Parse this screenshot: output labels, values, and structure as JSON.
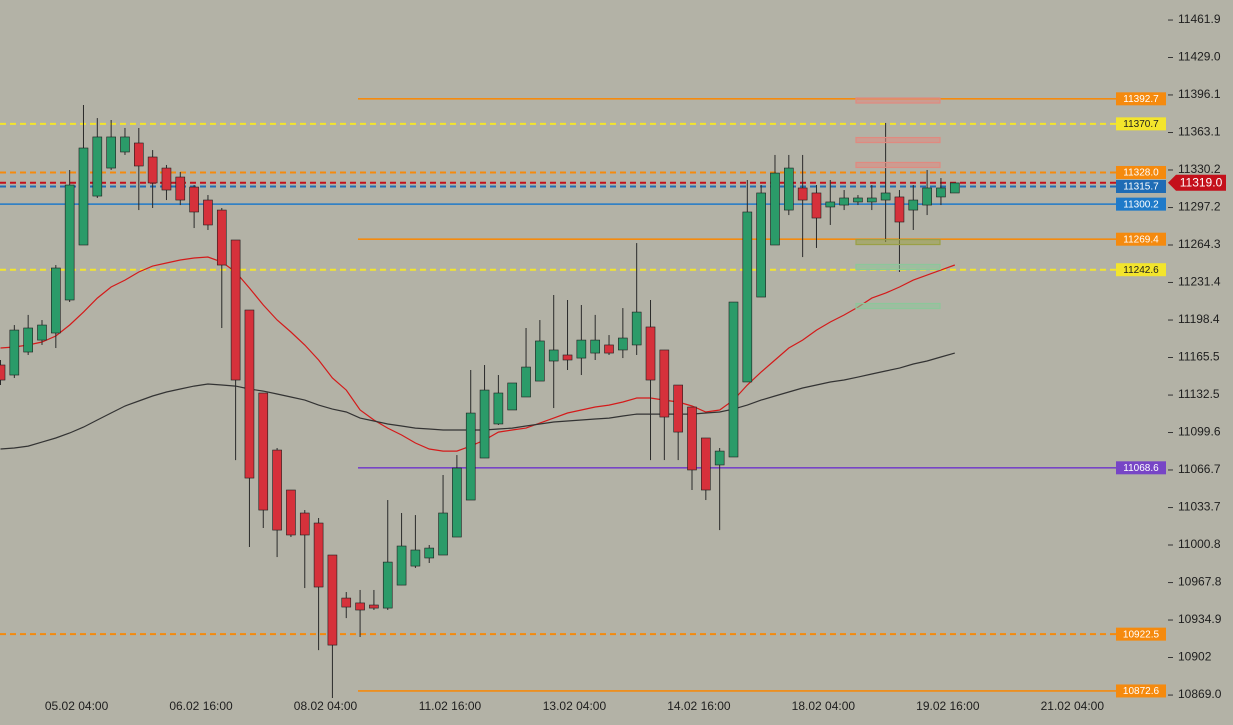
{
  "chart_data": {
    "type": "candlestick",
    "categories": [
      null,
      null,
      null,
      null,
      null,
      null,
      "05.02 04:00",
      null,
      null,
      null,
      null,
      null,
      null,
      null,
      null,
      "06.02 16:00",
      null,
      null,
      null,
      null,
      null,
      null,
      null,
      null,
      "08.02 04:00",
      null,
      null,
      null,
      null,
      null,
      null,
      null,
      null,
      "11.02 16:00",
      null,
      null,
      null,
      null,
      null,
      null,
      null,
      null,
      "13.02 04:00",
      null,
      null,
      null,
      null,
      null,
      null,
      null,
      null,
      "14.02 16:00",
      null,
      null,
      null,
      null,
      null,
      null,
      null,
      null,
      "18.02 04:00",
      null,
      null,
      null,
      null,
      null,
      null,
      null,
      null,
      "19.02 16:00",
      null,
      null,
      null,
      null,
      null,
      null,
      null,
      null,
      "21.02 04:00"
    ],
    "open": [
      11158.9,
      11150.1,
      11170.3,
      11180.8,
      11187.0,
      11216.0,
      11264.3,
      11307.3,
      11331.9,
      11346.0,
      11353.9,
      11341.6,
      11331.9,
      11324.0,
      11315.2,
      11303.8,
      11295.0,
      11268.7,
      11207.2,
      11134.3,
      11084.2,
      11049.1,
      11028.9,
      11020.1,
      10992.0,
      10954.2,
      10949.9,
      10948.1,
      10945.4,
      10965.6,
      10982.3,
      10989.4,
      10992.0,
      11007.8,
      11040.3,
      11077.2,
      11107.1,
      11119.4,
      11130.8,
      11144.8,
      11162.4,
      11167.7,
      11165.0,
      11169.4,
      11176.5,
      11172.1,
      11176.5,
      11192.3,
      11172.1,
      11141.3,
      11122.0,
      11094.8,
      11071.1,
      11078.1,
      11144.0,
      11218.6,
      11264.3,
      11295.0,
      11314.4,
      11310.0,
      11297.7,
      11299.4,
      11302.1,
      11302.1,
      11303.8,
      11306.5,
      11295.0,
      11299.4,
      11306.5,
      11310.0,
      null,
      null,
      null,
      null,
      null,
      null,
      null,
      null,
      null
    ],
    "high": [
      11163.3,
      11194.0,
      11202.9,
      11198.4,
      11246.7,
      11330.2,
      11387.3,
      11375.8,
      11374.1,
      11367.1,
      11367.1,
      11347.7,
      11334.6,
      11328.4,
      11317.0,
      11308.2,
      11296.8,
      11268.7,
      11207.2,
      11134.3,
      11086.0,
      11049.1,
      11031.5,
      11024.5,
      10992.0,
      10959.5,
      10961.3,
      10961.3,
      11040.3,
      11028.9,
      11027.1,
      11000.8,
      11062.3,
      11079.8,
      11154.5,
      11158.9,
      11150.1,
      11143.1,
      11191.4,
      11198.4,
      11220.4,
      11216.0,
      11211.6,
      11202.9,
      11185.2,
      11208.9,
      11266.0,
      11216.0,
      11172.1,
      11141.3,
      11122.0,
      11094.8,
      11086.0,
      11214.2,
      11321.4,
      11317.0,
      11343.4,
      11343.4,
      11343.4,
      11317.0,
      11321.4,
      11312.6,
      11308.2,
      11317.0,
      11371.5,
      11312.6,
      11317.0,
      11330.2,
      11323.1,
      11318.8,
      null,
      null,
      null,
      null,
      null,
      null,
      null,
      null,
      null
    ],
    "low": [
      11141.3,
      11147.5,
      11167.7,
      11176.5,
      11173.8,
      11214.2,
      11264.3,
      11305.6,
      11330.2,
      11343.4,
      11295.0,
      11296.8,
      11303.8,
      11299.4,
      11279.2,
      11277.5,
      11191.4,
      11075.4,
      10999.0,
      11015.7,
      10990.2,
      11007.8,
      10963.0,
      10908.5,
      10866.4,
      10936.6,
      10920.0,
      10943.7,
      10943.7,
      10965.6,
      10980.6,
      10985.0,
      10992.0,
      11007.8,
      11040.3,
      11077.2,
      11106.2,
      11119.4,
      11130.8,
      11144.8,
      11121.1,
      11154.5,
      11150.1,
      11163.3,
      11167.7,
      11165.0,
      11167.7,
      11075.4,
      11075.4,
      11075.4,
      11049.1,
      11040.3,
      11013.9,
      11078.1,
      11144.0,
      11218.6,
      11264.3,
      11290.6,
      11253.7,
      11261.7,
      11281.9,
      11295.0,
      11299.4,
      11295.0,
      11266.9,
      11240.6,
      11277.5,
      11290.6,
      11299.4,
      11310.0,
      null,
      null,
      null,
      null,
      null,
      null,
      null,
      null,
      null
    ],
    "close": [
      11145.7,
      11189.6,
      11191.4,
      11194.0,
      11244.1,
      11317.0,
      11349.5,
      11359.2,
      11359.2,
      11359.2,
      11333.7,
      11318.8,
      11312.6,
      11303.8,
      11293.3,
      11281.9,
      11246.7,
      11145.7,
      11059.6,
      11031.5,
      11013.9,
      11009.6,
      11009.6,
      10963.9,
      10912.9,
      10946.3,
      10943.7,
      10945.4,
      10985.8,
      10999.9,
      10996.4,
      10998.1,
      11028.9,
      11068.4,
      11116.7,
      11136.9,
      11134.3,
      11143.1,
      11157.1,
      11180.0,
      11172.1,
      11163.3,
      11180.8,
      11180.8,
      11169.4,
      11182.6,
      11205.4,
      11145.7,
      11113.2,
      11100.0,
      11066.7,
      11049.1,
      11083.3,
      11214.2,
      11293.3,
      11310.0,
      11327.5,
      11331.9,
      11303.8,
      11288.0,
      11302.1,
      11305.6,
      11305.6,
      11305.6,
      11310.0,
      11284.5,
      11303.8,
      11314.4,
      11314.4,
      11318.8,
      null,
      null,
      null,
      null,
      null,
      null,
      null,
      null,
      null
    ],
    "up_color": "#2b9b69",
    "down_color": "#d6313b",
    "wick_color": "#2a2a2a",
    "moving_averages": [
      {
        "color": "#d41a1a",
        "values": [
          11173.8,
          11174.7,
          11176.5,
          11179.1,
          11184.4,
          11194.0,
          11205.4,
          11217.7,
          11227.4,
          11233.5,
          11240.6,
          11245.8,
          11248.5,
          11251.1,
          11252.9,
          11253.8,
          11249.4,
          11240.6,
          11226.5,
          11211.6,
          11198.4,
          11187.9,
          11176.5,
          11163.3,
          11147.5,
          11136.9,
          11119.4,
          11110.6,
          11103.5,
          11097.4,
          11090.4,
          11085.1,
          11083.3,
          11083.3,
          11087.7,
          11093.0,
          11100.0,
          11101.8,
          11103.5,
          11107.9,
          11112.3,
          11116.7,
          11119.4,
          11122.0,
          11123.7,
          11126.4,
          11129.9,
          11129.9,
          11128.1,
          11126.4,
          11122.9,
          11117.6,
          11119.4,
          11128.1,
          11141.3,
          11152.7,
          11163.3,
          11173.8,
          11180.8,
          11189.6,
          11196.7,
          11202.8,
          11209.8,
          11217.7,
          11222.1,
          11227.4,
          11233.5,
          11237.9,
          11242.3,
          11246.7,
          null,
          null,
          null,
          null,
          null,
          null,
          null,
          null,
          null
        ]
      },
      {
        "color": "#333333",
        "values": [
          11085.1,
          11086.0,
          11087.7,
          11091.2,
          11094.8,
          11099.2,
          11104.4,
          11110.6,
          11116.7,
          11122.9,
          11127.3,
          11131.7,
          11135.2,
          11137.8,
          11140.4,
          11142.2,
          11141.3,
          11140.4,
          11137.8,
          11136.0,
          11133.4,
          11130.8,
          11128.1,
          11123.7,
          11120.2,
          11117.6,
          11112.3,
          11109.7,
          11107.1,
          11105.3,
          11103.5,
          11102.7,
          11101.8,
          11101.8,
          11101.8,
          11101.8,
          11102.7,
          11103.5,
          11105.3,
          11107.1,
          11108.8,
          11109.7,
          11110.6,
          11111.5,
          11112.3,
          11114.1,
          11115.8,
          11115.8,
          11115.8,
          11115.8,
          11115.8,
          11116.7,
          11117.6,
          11120.2,
          11123.7,
          11128.1,
          11131.7,
          11135.2,
          11138.7,
          11141.3,
          11144.0,
          11145.7,
          11148.3,
          11151.0,
          11153.6,
          11156.2,
          11159.8,
          11162.4,
          11165.9,
          11169.4,
          null,
          null,
          null,
          null,
          null,
          null,
          null,
          null,
          null
        ]
      }
    ],
    "levels": [
      {
        "value": 11392.7,
        "color": "#f58a0e",
        "text_color": "#ffffff",
        "dashed": false,
        "extended": false
      },
      {
        "value": 11370.7,
        "color": "#f3e52c",
        "text_color": "#1e1e1e",
        "dashed": true,
        "extended": true
      },
      {
        "value": 11328.0,
        "label": "11328.0",
        "color": "#f58a0e",
        "text_color": "#ffffff",
        "dashed": true,
        "extended": true
      },
      {
        "value": 11315.7,
        "color": "#1f6cb5",
        "text_color": "#ffffff",
        "dashed": true,
        "extended": true
      },
      {
        "value": 11300.2,
        "color": "#1f7ac9",
        "text_color": "#ffffff",
        "dashed": false,
        "extended": true
      },
      {
        "value": 11269.4,
        "color": "#f58a0e",
        "text_color": "#ffffff",
        "dashed": false,
        "extended": false
      },
      {
        "value": 11242.6,
        "color": "#f3e52c",
        "text_color": "#1e1e1e",
        "dashed": true,
        "extended": true
      },
      {
        "value": 11068.6,
        "color": "#7745c6",
        "text_color": "#ffffff",
        "dashed": false,
        "extended": false
      },
      {
        "value": 10922.5,
        "color": "#f58a0e",
        "text_color": "#ffffff",
        "dashed": true,
        "extended": true
      },
      {
        "value": 10872.6,
        "color": "#f58a0e",
        "text_color": "#ffffff",
        "dashed": false,
        "extended": false
      }
    ],
    "last_price": {
      "value": 11319.0,
      "label": "11319.0",
      "color": "#c4101b"
    },
    "zones": [
      {
        "value": 11391.2,
        "color": "#e08a80"
      },
      {
        "value": 11356.5,
        "color": "#e08a80"
      },
      {
        "value": 11334.6,
        "color": "#e08a80"
      },
      {
        "value": 11266.9,
        "color": "#9aa046"
      },
      {
        "value": 11245.0,
        "color": "#8cc79a"
      },
      {
        "value": 11210.7,
        "color": "#8cc79a"
      }
    ],
    "ylim": [
      10842.7,
      11479.5
    ],
    "yticks": [
      {
        "value": 11461.9,
        "label": "11461.9"
      },
      {
        "value": 11429.0,
        "label": "11429.0"
      },
      11396.1,
      11363.1,
      11330.2,
      11297.2,
      11264.3,
      11231.4,
      11198.4,
      11165.5,
      11132.5,
      11099.6,
      11066.7,
      11033.7,
      11000.8,
      10967.8,
      10934.9,
      10902.0,
      {
        "value": 10869.0,
        "label": "10869.0"
      }
    ]
  }
}
